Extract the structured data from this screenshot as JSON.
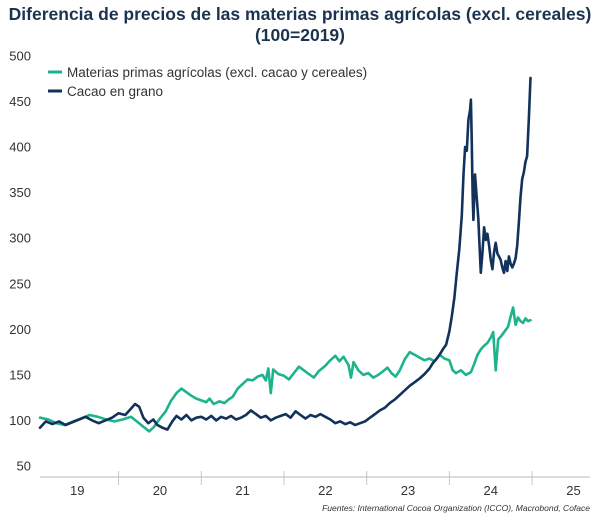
{
  "chart_data": {
    "type": "line",
    "title": "Diferencia de precios de las materias primas agrícolas (excl. cereales)",
    "subtitle": "(100=2019)",
    "xlabel": "",
    "ylabel": "",
    "xlim": [
      2018.55,
      2025.2
    ],
    "ylim": [
      50,
      500
    ],
    "yticks": [
      50,
      100,
      150,
      200,
      250,
      300,
      350,
      400,
      450,
      500
    ],
    "xticks": [
      {
        "label": "19",
        "pos": 2019.0
      },
      {
        "label": "20",
        "pos": 2020.0
      },
      {
        "label": "21",
        "pos": 2021.0
      },
      {
        "label": "22",
        "pos": 2022.0
      },
      {
        "label": "23",
        "pos": 2023.0
      },
      {
        "label": "24",
        "pos": 2024.0
      },
      {
        "label": "25",
        "pos": 2025.0
      }
    ],
    "xgrid_boundaries": [
      2019.5,
      2020.5,
      2021.5,
      2022.5,
      2023.5,
      2024.5
    ],
    "grid": false,
    "legend_position": "top-left",
    "source": "Fuentes: International Cocoa Organization (ICCO), Macrobond, Coface",
    "series": [
      {
        "name": "Materias primas agrícolas (excl. cacao y cereales)",
        "color": "#1db38c",
        "points": [
          [
            2018.55,
            103
          ],
          [
            2018.65,
            101
          ],
          [
            2018.75,
            97
          ],
          [
            2018.85,
            95
          ],
          [
            2018.95,
            99
          ],
          [
            2019.05,
            102
          ],
          [
            2019.15,
            106
          ],
          [
            2019.25,
            104
          ],
          [
            2019.35,
            101
          ],
          [
            2019.45,
            99
          ],
          [
            2019.55,
            101
          ],
          [
            2019.65,
            104
          ],
          [
            2019.72,
            99
          ],
          [
            2019.8,
            93
          ],
          [
            2019.87,
            88
          ],
          [
            2019.93,
            93
          ],
          [
            2020.0,
            102
          ],
          [
            2020.07,
            110
          ],
          [
            2020.13,
            121
          ],
          [
            2020.2,
            130
          ],
          [
            2020.26,
            135
          ],
          [
            2020.32,
            131
          ],
          [
            2020.38,
            127
          ],
          [
            2020.44,
            124
          ],
          [
            2020.5,
            122
          ],
          [
            2020.56,
            120
          ],
          [
            2020.6,
            124
          ],
          [
            2020.65,
            118
          ],
          [
            2020.72,
            121
          ],
          [
            2020.78,
            119
          ],
          [
            2020.83,
            123
          ],
          [
            2020.88,
            126
          ],
          [
            2020.94,
            135
          ],
          [
            2021.0,
            140
          ],
          [
            2021.06,
            145
          ],
          [
            2021.12,
            144
          ],
          [
            2021.18,
            148
          ],
          [
            2021.24,
            150
          ],
          [
            2021.28,
            144
          ],
          [
            2021.31,
            157
          ],
          [
            2021.34,
            130
          ],
          [
            2021.37,
            156
          ],
          [
            2021.43,
            151
          ],
          [
            2021.5,
            149
          ],
          [
            2021.56,
            145
          ],
          [
            2021.62,
            152
          ],
          [
            2021.68,
            159
          ],
          [
            2021.74,
            155
          ],
          [
            2021.8,
            151
          ],
          [
            2021.86,
            147
          ],
          [
            2021.92,
            154
          ],
          [
            2022.0,
            160
          ],
          [
            2022.06,
            166
          ],
          [
            2022.12,
            171
          ],
          [
            2022.17,
            165
          ],
          [
            2022.22,
            170
          ],
          [
            2022.28,
            161
          ],
          [
            2022.31,
            147
          ],
          [
            2022.34,
            164
          ],
          [
            2022.4,
            155
          ],
          [
            2022.46,
            150
          ],
          [
            2022.52,
            152
          ],
          [
            2022.58,
            147
          ],
          [
            2022.64,
            150
          ],
          [
            2022.7,
            154
          ],
          [
            2022.75,
            158
          ],
          [
            2022.8,
            152
          ],
          [
            2022.85,
            148
          ],
          [
            2022.9,
            155
          ],
          [
            2022.96,
            167
          ],
          [
            2023.02,
            175
          ],
          [
            2023.08,
            172
          ],
          [
            2023.14,
            169
          ],
          [
            2023.2,
            166
          ],
          [
            2023.26,
            168
          ],
          [
            2023.32,
            165
          ],
          [
            2023.38,
            172
          ],
          [
            2023.44,
            168
          ],
          [
            2023.5,
            166
          ],
          [
            2023.54,
            155
          ],
          [
            2023.58,
            152
          ],
          [
            2023.64,
            155
          ],
          [
            2023.7,
            150
          ],
          [
            2023.76,
            153
          ],
          [
            2023.8,
            162
          ],
          [
            2023.84,
            172
          ],
          [
            2023.88,
            178
          ],
          [
            2023.92,
            182
          ],
          [
            2023.96,
            185
          ],
          [
            2024.0,
            191
          ],
          [
            2024.03,
            197
          ],
          [
            2024.06,
            155
          ],
          [
            2024.09,
            189
          ],
          [
            2024.13,
            193
          ],
          [
            2024.17,
            198
          ],
          [
            2024.21,
            203
          ],
          [
            2024.24,
            214
          ],
          [
            2024.27,
            224
          ],
          [
            2024.3,
            205
          ],
          [
            2024.33,
            213
          ],
          [
            2024.36,
            209
          ],
          [
            2024.39,
            207
          ],
          [
            2024.42,
            212
          ],
          [
            2024.45,
            209
          ],
          [
            2024.48,
            210
          ]
        ]
      },
      {
        "name": "Cacao en grano",
        "color": "#12325c",
        "points": [
          [
            2018.55,
            92
          ],
          [
            2018.62,
            99
          ],
          [
            2018.7,
            96
          ],
          [
            2018.78,
            99
          ],
          [
            2018.86,
            95
          ],
          [
            2018.94,
            98
          ],
          [
            2019.02,
            101
          ],
          [
            2019.1,
            104
          ],
          [
            2019.18,
            100
          ],
          [
            2019.26,
            97
          ],
          [
            2019.34,
            100
          ],
          [
            2019.42,
            103
          ],
          [
            2019.5,
            108
          ],
          [
            2019.58,
            106
          ],
          [
            2019.64,
            112
          ],
          [
            2019.7,
            118
          ],
          [
            2019.75,
            115
          ],
          [
            2019.8,
            103
          ],
          [
            2019.86,
            97
          ],
          [
            2019.92,
            101
          ],
          [
            2019.97,
            95
          ],
          [
            2020.03,
            92
          ],
          [
            2020.09,
            90
          ],
          [
            2020.15,
            99
          ],
          [
            2020.2,
            105
          ],
          [
            2020.26,
            101
          ],
          [
            2020.32,
            106
          ],
          [
            2020.38,
            100
          ],
          [
            2020.44,
            103
          ],
          [
            2020.5,
            104
          ],
          [
            2020.56,
            101
          ],
          [
            2020.62,
            105
          ],
          [
            2020.68,
            100
          ],
          [
            2020.74,
            104
          ],
          [
            2020.8,
            102
          ],
          [
            2020.86,
            105
          ],
          [
            2020.92,
            101
          ],
          [
            2020.98,
            103
          ],
          [
            2021.04,
            106
          ],
          [
            2021.1,
            111
          ],
          [
            2021.16,
            107
          ],
          [
            2021.22,
            103
          ],
          [
            2021.28,
            105
          ],
          [
            2021.34,
            100
          ],
          [
            2021.4,
            103
          ],
          [
            2021.46,
            105
          ],
          [
            2021.52,
            107
          ],
          [
            2021.58,
            103
          ],
          [
            2021.64,
            110
          ],
          [
            2021.7,
            106
          ],
          [
            2021.76,
            102
          ],
          [
            2021.82,
            106
          ],
          [
            2021.88,
            104
          ],
          [
            2021.94,
            107
          ],
          [
            2022.0,
            104
          ],
          [
            2022.06,
            101
          ],
          [
            2022.12,
            97
          ],
          [
            2022.18,
            99
          ],
          [
            2022.24,
            96
          ],
          [
            2022.3,
            98
          ],
          [
            2022.36,
            95
          ],
          [
            2022.42,
            97
          ],
          [
            2022.48,
            99
          ],
          [
            2022.54,
            103
          ],
          [
            2022.6,
            107
          ],
          [
            2022.66,
            111
          ],
          [
            2022.72,
            114
          ],
          [
            2022.78,
            119
          ],
          [
            2022.84,
            123
          ],
          [
            2022.9,
            128
          ],
          [
            2022.96,
            133
          ],
          [
            2023.02,
            138
          ],
          [
            2023.08,
            142
          ],
          [
            2023.14,
            146
          ],
          [
            2023.2,
            151
          ],
          [
            2023.26,
            157
          ],
          [
            2023.3,
            163
          ],
          [
            2023.34,
            167
          ],
          [
            2023.38,
            172
          ],
          [
            2023.42,
            178
          ],
          [
            2023.46,
            183
          ],
          [
            2023.5,
            198
          ],
          [
            2023.53,
            215
          ],
          [
            2023.56,
            235
          ],
          [
            2023.59,
            262
          ],
          [
            2023.62,
            288
          ],
          [
            2023.65,
            325
          ],
          [
            2023.67,
            370
          ],
          [
            2023.69,
            400
          ],
          [
            2023.71,
            396
          ],
          [
            2023.73,
            430
          ],
          [
            2023.75,
            441
          ],
          [
            2023.76,
            452
          ],
          [
            2023.77,
            410
          ],
          [
            2023.78,
            350
          ],
          [
            2023.79,
            320
          ],
          [
            2023.81,
            370
          ],
          [
            2023.83,
            345
          ],
          [
            2023.85,
            322
          ],
          [
            2023.86,
            300
          ],
          [
            2023.88,
            262
          ],
          [
            2023.9,
            285
          ],
          [
            2023.92,
            312
          ],
          [
            2023.94,
            298
          ],
          [
            2023.96,
            305
          ],
          [
            2023.98,
            292
          ],
          [
            2024.0,
            276
          ],
          [
            2024.02,
            266
          ],
          [
            2024.04,
            285
          ],
          [
            2024.06,
            295
          ],
          [
            2024.08,
            283
          ],
          [
            2024.1,
            280
          ],
          [
            2024.12,
            276
          ],
          [
            2024.14,
            268
          ],
          [
            2024.16,
            262
          ],
          [
            2024.18,
            275
          ],
          [
            2024.2,
            264
          ],
          [
            2024.22,
            280
          ],
          [
            2024.24,
            272
          ],
          [
            2024.26,
            268
          ],
          [
            2024.28,
            272
          ],
          [
            2024.3,
            278
          ],
          [
            2024.32,
            292
          ],
          [
            2024.34,
            318
          ],
          [
            2024.36,
            345
          ],
          [
            2024.38,
            365
          ],
          [
            2024.4,
            372
          ],
          [
            2024.42,
            384
          ],
          [
            2024.44,
            390
          ],
          [
            2024.46,
            430
          ],
          [
            2024.48,
            476
          ]
        ]
      }
    ]
  }
}
